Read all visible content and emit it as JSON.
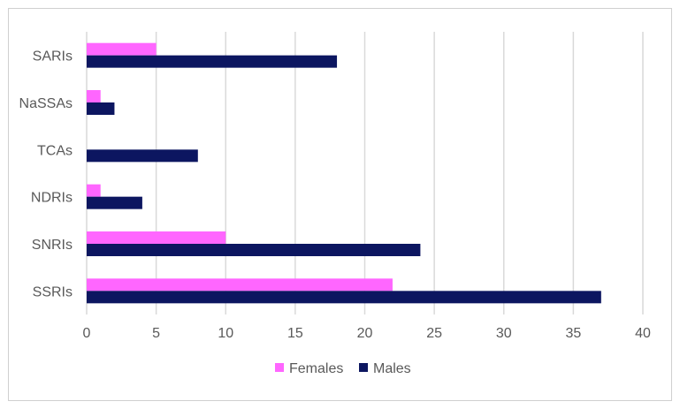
{
  "chart_data": {
    "type": "bar",
    "orientation": "horizontal",
    "categories": [
      "SSRIs",
      "SNRIs",
      "NDRIs",
      "TCAs",
      "NaSSAs",
      "SARIs"
    ],
    "series": [
      {
        "name": "Females",
        "color": "#ff66ff",
        "values": [
          22,
          10,
          1,
          0,
          1,
          5
        ]
      },
      {
        "name": "Males",
        "color": "#0c1660",
        "values": [
          37,
          24,
          4,
          8,
          2,
          18
        ]
      }
    ],
    "xlim": [
      0,
      40
    ],
    "xticks": [
      0,
      5,
      10,
      15,
      20,
      25,
      30,
      35,
      40
    ],
    "grid": "vertical",
    "legend_position": "bottom"
  }
}
